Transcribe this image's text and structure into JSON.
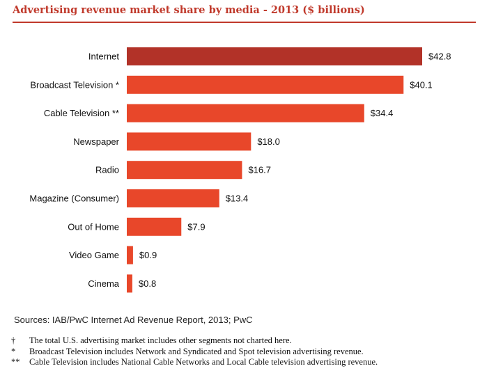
{
  "title": "Advertising revenue market share by media - 2013 ($ billions)",
  "chart_data": {
    "type": "bar",
    "orientation": "horizontal",
    "categories": [
      "Internet",
      "Broadcast Television *",
      "Cable Television **",
      "Newspaper",
      "Radio",
      "Magazine (Consumer)",
      "Out of Home",
      "Video Game",
      "Cinema"
    ],
    "values": [
      42.8,
      40.1,
      34.4,
      18.0,
      16.7,
      13.4,
      7.9,
      0.9,
      0.8
    ],
    "value_labels": [
      "$42.8",
      "$40.1",
      "$34.4",
      "$18.0",
      "$16.7",
      "$13.4",
      "$7.9",
      "$0.9",
      "$0.8"
    ],
    "highlight_index": 0,
    "colors": {
      "highlight": "#b23228",
      "bar": "#e8472a"
    },
    "xlim": [
      0,
      42.8
    ],
    "xlabel": "",
    "ylabel": ""
  },
  "source": "Sources: IAB/PwC Internet Ad Revenue Report, 2013; PwC",
  "footnotes": [
    {
      "symbol": "†",
      "text": "The total U.S. advertising market includes other segments not charted here."
    },
    {
      "symbol": "*",
      "text": "Broadcast Television includes Network and Syndicated and Spot television advertising revenue."
    },
    {
      "symbol": "**",
      "text": "Cable Television includes National Cable Networks and Local Cable television advertising revenue."
    }
  ]
}
